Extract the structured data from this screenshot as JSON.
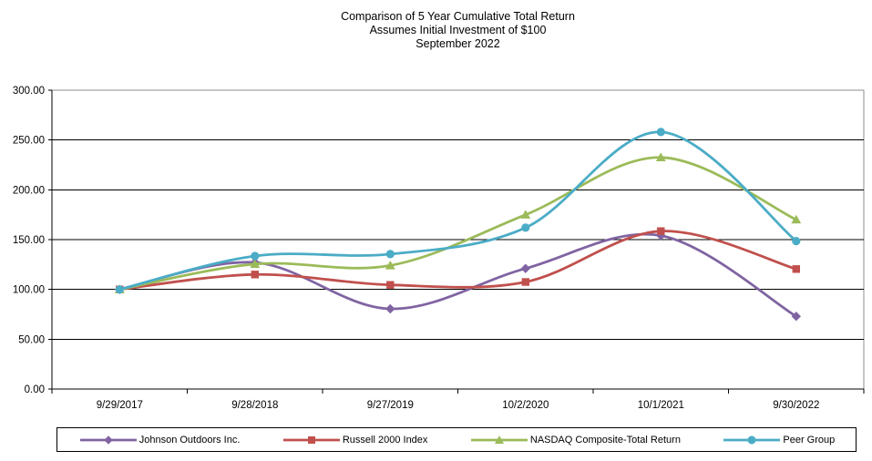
{
  "chart_data": {
    "type": "line",
    "title": "Comparison of 5 Year Cumulative Total Return",
    "subtitle1": "Assumes Initial Investment of $100",
    "subtitle2": "September 2022",
    "categories": [
      "9/29/2017",
      "9/28/2018",
      "9/27/2019",
      "10/2/2020",
      "10/1/2021",
      "9/30/2022"
    ],
    "series": [
      {
        "name": "Johnson Outdoors Inc.",
        "color": "#8064A2",
        "marker": "diamond",
        "values": [
          100.0,
          127.0,
          80.5,
          121.0,
          154.0,
          73.0
        ]
      },
      {
        "name": "Russell 2000 Index",
        "color": "#C0504D",
        "marker": "square",
        "values": [
          100.0,
          115.0,
          104.5,
          107.5,
          158.5,
          120.5
        ]
      },
      {
        "name": "NASDAQ Composite-Total Return",
        "color": "#9BBB59",
        "marker": "triangle",
        "values": [
          100.0,
          125.5,
          124.0,
          175.0,
          232.5,
          170.0
        ]
      },
      {
        "name": "Peer Group",
        "color": "#4BACC6",
        "marker": "circle",
        "values": [
          100.0,
          133.5,
          135.5,
          162.0,
          258.0,
          148.5
        ]
      }
    ],
    "y_axis": {
      "min": 0,
      "max": 300,
      "step": 50,
      "tick_labels": [
        "0.00",
        "50.00",
        "100.00",
        "150.00",
        "200.00",
        "250.00",
        "300.00"
      ]
    },
    "grid": true,
    "smoothed": true,
    "legend_position": "bottom"
  },
  "colors": {
    "background": "#FFFFFF",
    "gridline": "#000000",
    "axis": "#000000",
    "plot_border_gray": "#8C8C8C",
    "text": "#000000",
    "johnson_purple": "#8064A2",
    "russell_red": "#C0504D",
    "nasdaq_green": "#9BBB59",
    "peer_blue": "#4BACC6"
  }
}
